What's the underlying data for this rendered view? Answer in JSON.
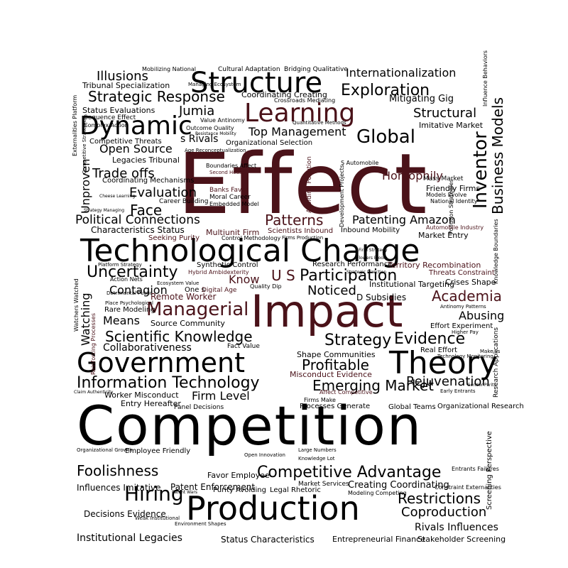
{
  "colors": {
    "background": "#ffffff",
    "primary": "#000000",
    "accent": "#4a1219"
  },
  "words": {
    "effect": "Effect",
    "competition": "Competition",
    "impact": "Impact",
    "technological_change": "Technological Change",
    "government": "Government",
    "structure": "Structure",
    "production": "Production",
    "learning": "Learning",
    "dynamic": "Dynamic",
    "theory": "Theory",
    "global": "Global",
    "information_technology": "Information Technology",
    "competitive_advantage": "Competitive Advantage",
    "managerial": "Managerial",
    "uncertainty": "Uncertainty",
    "participation": "Participation",
    "patterns": "Patterns",
    "strategy": "Strategy",
    "evidence": "Evidence",
    "exploration": "Exploration",
    "strategic_response": "Strategic Response",
    "scientific_knowledge": "Scientific Knowledge",
    "political_connections": "Political Connections",
    "emerging_market": "Emerging Market",
    "hiring": "Hiring",
    "foolishness": "Foolishness",
    "restrictions": "Restrictions",
    "coproduction": "Coproduction",
    "rejuvenation": "Rejuvenation",
    "academia": "Academia",
    "profitable": "Profitable",
    "top_management": "Top Management",
    "internationalization": "Internationalization",
    "illusions": "Illusions",
    "jumia": "Jumia",
    "face": "Face",
    "evaluation": "Evaluation",
    "trade_offs": "Trade offs",
    "open_source": "Open Source",
    "contagion": "Contagion",
    "collaborativeness": "Collaborativeness",
    "means": "Means",
    "watching": "Watching",
    "inventor": "Inventor",
    "business_models": "Business Models",
    "structural": "Structural",
    "homophily": "Homophily",
    "patenting_amazon": "Patenting Amazon",
    "know": "Know",
    "u_s": "U S",
    "noticed": "Noticed",
    "firm_level": "Firm Level",
    "unproven": "Unproven",
    "abusing": "Abusing",
    "status_characteristics": "Status Characteristics",
    "entrepreneurial_finance": "Entrepreneurial Finance",
    "stakeholder_screening": "Stakeholder Screening",
    "institutional_legacies": "Institutional Legacies",
    "rivals_influences": "Rivals Influences",
    "creating_coordinating": "Creating Coordinating",
    "influences_imitative": "Influences Imitative",
    "decisions_evidence": "Decisions Evidence",
    "patent_enforcement": "Patent Enforcement",
    "favor_employee": "Favor Employee",
    "purity_avoiding": "Purity Avoiding",
    "legal_rhetoric": "Legal Rhetoric",
    "market_services": "Market Services",
    "shape_communities": "Shape Communities",
    "misconduct_evidence": "Misconduct Evidence",
    "processes_generate": "Processes Generate",
    "global_teams": "Global Teams",
    "organizational_research": "Organizational Research",
    "screening_perspective": "Screening Perspective",
    "real_effort": "Real Effort",
    "crises_shape": "Crises Shape",
    "threats_constraint": "Threats Constraint",
    "institutional_targeting": "Institutional Targeting",
    "territory_recombination": "Territory Recombination",
    "research_performance": "Research Performance",
    "d_subsidies": "D Subsidies",
    "remote_worker": "Remote Worker",
    "source_community": "Source Community",
    "rare_modeling": "Rare Modeling",
    "action_nets": "Action Nets",
    "one_s": "One s",
    "characteristics_status": "Characteristics Status",
    "scientists_inbound": "Scientists Inbound",
    "inbound_mobility": "Inbound Mobility",
    "market_entry": "Market Entry",
    "friendly_firms": "Friendly Firms",
    "mass_market": "Mass Market",
    "imitative_market": "Imitative Market",
    "mitigating_gig": "Mitigating Gig",
    "coordinating_creating": "Coordinating Creating",
    "crossroads_mediating": "Crossroads Mediating",
    "cultural_adaptation": "Cultural Adaptation",
    "bridging_qualitative": "Bridging Qualitative",
    "mobilizing_national": "Mobilizing National",
    "tribunal_specialization": "Tribunal Specialization",
    "status_evaluations": "Status Evaluations",
    "sequence_effect": "Sequence Effect",
    "complex_action": "Complex Action",
    "competitive_threats": "Competitive Threats",
    "s_rivals": "s Rivals",
    "legacies_tribunal": "Legacies Tribunal",
    "coordinating_mechanisms": "Coordinating Mechanisms",
    "career_building": "Career Building",
    "strategy_managing": "Strategy Managing",
    "moral_career": "Moral Career",
    "embedded_model": "Embedded Model",
    "banks_favor": "Banks Favor",
    "boundaries_affect": "Boundaries Affect",
    "second_house": "Second House",
    "organizational_selection": "Organizational Selection",
    "outcome_quality": "Outcome Quality",
    "value_antinomy": "Value Antinomy",
    "multiunit_firm": "Multiunit Firm",
    "control_methodology": "Control Methodology",
    "seeking_purity": "Seeking Purity",
    "synthetic_control": "Synthetic Control",
    "hybrid_ambidexterity": "Hybrid Ambidexterity",
    "digital_age": "Digital Age",
    "quality_dip": "Quality Dip",
    "fact_value": "Fact Value",
    "worker_misconduct": "Worker Misconduct",
    "entry_hereafter": "Entry Hereafter",
    "panel_decisions": "Panel Decisions",
    "employee_friendly": "Employee Friendly",
    "organizational_growth": "Organizational Growth",
    "claim_authenticity": "Claim Authenticity",
    "open_innovation": "Open Innovation",
    "large_numbers": "Large Numbers",
    "knowledge_lot": "Knowledge Lot",
    "modeling_competing": "Modeling Competing",
    "constraint_externalities": "Constraint Externalities",
    "entrants_failures": "Entrants Failures",
    "affect_competitive": "Affect Competitive",
    "firms_make": "Firms Make",
    "automobile_industry": "Automobile Industry",
    "national_identity": "National Identity",
    "models_evolve": "Models Evolve",
    "antinomy_patterns": "Antinomy Patterns",
    "effort_experiment": "Effort Experiment",
    "higher_pay": "Higher Pay",
    "make_vs": "Make vs",
    "technology_monitoring": "Technology Monitoring",
    "gender_parity": "Gender Parity",
    "early_entrants": "Early Entrants",
    "knowledge_boundaries": "Knowledge Boundaries",
    "research_applications": "Research Applications",
    "watchers_watched": "Watchers Watched",
    "platform_strategy": "Platform Strategy",
    "ecosystem_value": "Ecosystem Value",
    "place_psychological": "Place Psychological",
    "detrimental_public": "Detrimental Public",
    "reinforcing_processes": "Reinforcing Processes",
    "strategic_direction": "Strategic Direction",
    "firm_strategy": "Firm Strategy",
    "flowers_bloom": "Flowers Bloom",
    "avoiding_pollution": "Avoiding Pollution",
    "development_projects": "Development Projects",
    "s_automobile": "S Automobile",
    "pollution_strategies": "Pollution Strategies",
    "influence_behaviors": "Influence Behaviors",
    "externalities_platform": "Externalities Platform",
    "age_reconceptualization": "Age Reconceptualization",
    "resistance_mobility": "Resistance Mobility",
    "managing_ecosystem": "Managing Ecosystem",
    "quantitative_methods": "Quantitative Methods",
    "patent_wars": "Patent Wars",
    "cheese_learning": "Cheese Learning",
    "weak_institutional": "Weak Institutional",
    "environment_shapes": "Environment Shapes",
    "competitive_strategies": "Competitive Strategies",
    "firms_production": "Firms Production"
  }
}
